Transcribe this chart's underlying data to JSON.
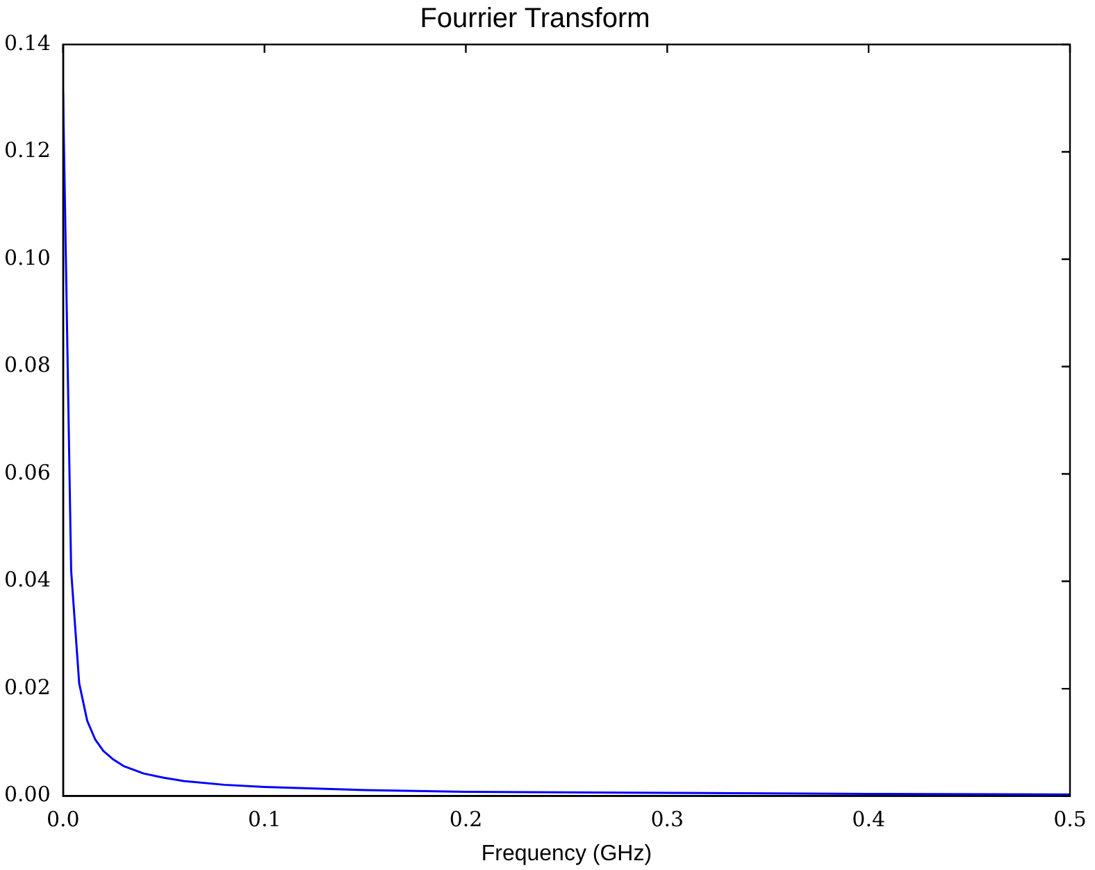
{
  "chart_data": {
    "type": "line",
    "title": "Fourrier Transform",
    "xlabel": "Frequency (GHz)",
    "x": [
      0,
      0.004,
      0.008,
      0.012,
      0.016,
      0.02,
      0.025,
      0.03,
      0.04,
      0.05,
      0.06,
      0.08,
      0.1,
      0.15,
      0.2,
      0.3,
      0.4,
      0.5
    ],
    "series": [
      {
        "color": "#0000ff",
        "values": [
          0.131,
          0.042,
          0.021,
          0.014,
          0.0105,
          0.0084,
          0.0068,
          0.0056,
          0.0042,
          0.0034,
          0.0028,
          0.0021,
          0.0017,
          0.0011,
          0.0008,
          0.0006,
          0.0004,
          0.0003
        ]
      }
    ],
    "xlim": [
      0,
      0.5
    ],
    "xticks": [
      {
        "value": 0,
        "label": "0.0"
      },
      0.1,
      0.2,
      0.3,
      0.4,
      {
        "value": 0.5,
        "label": "0.5"
      }
    ],
    "ylim": [
      0,
      0.14
    ],
    "yticks": [
      {
        "value": 0,
        "label": "0.00"
      },
      0.02,
      0.04,
      0.06,
      0.08,
      {
        "value": 0.1,
        "label": "0.10"
      },
      0.12,
      0.14
    ],
    "grid": false,
    "legend": false
  }
}
